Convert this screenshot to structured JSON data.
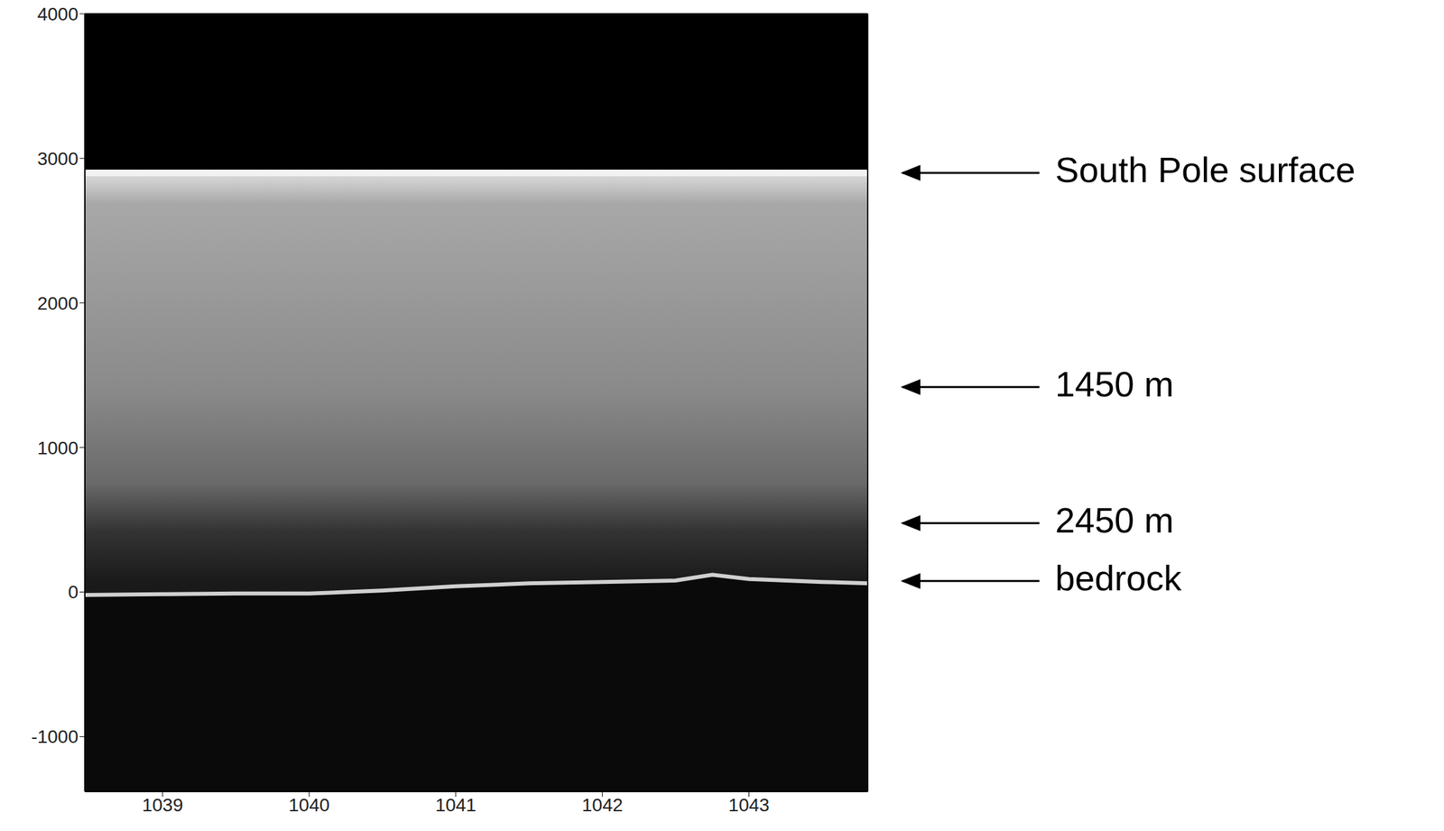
{
  "chart_data": {
    "type": "echogram",
    "x": [
      1038.47,
      1039,
      1039.5,
      1040,
      1040.5,
      1041,
      1041.5,
      1042,
      1042.5,
      1042.75,
      1043,
      1043.5,
      1043.81
    ],
    "series": [
      {
        "name": "South Pole surface",
        "color": "#f2f2f2",
        "values": [
          2900,
          2900,
          2900,
          2900,
          2900,
          2900,
          2900,
          2900,
          2900,
          2900,
          2900,
          2900,
          2900
        ]
      },
      {
        "name": "bedrock",
        "color": "#d0d0d0",
        "values": [
          -20,
          -15,
          -10,
          -10,
          10,
          40,
          60,
          70,
          80,
          120,
          90,
          70,
          60
        ]
      }
    ],
    "xlim": [
      1038.47,
      1043.81
    ],
    "ylim": [
      -1380,
      4000
    ],
    "xticks": [
      1039,
      1040,
      1041,
      1042,
      1043
    ],
    "yticks": [
      -1000,
      0,
      1000,
      2000,
      3000,
      4000
    ],
    "annotations": [
      {
        "text": "South Pole surface",
        "y": 2900
      },
      {
        "text": "1450 m",
        "y": 1418
      },
      {
        "text": "2450 m",
        "y": 477
      },
      {
        "text": "bedrock",
        "y": 76
      }
    ]
  }
}
